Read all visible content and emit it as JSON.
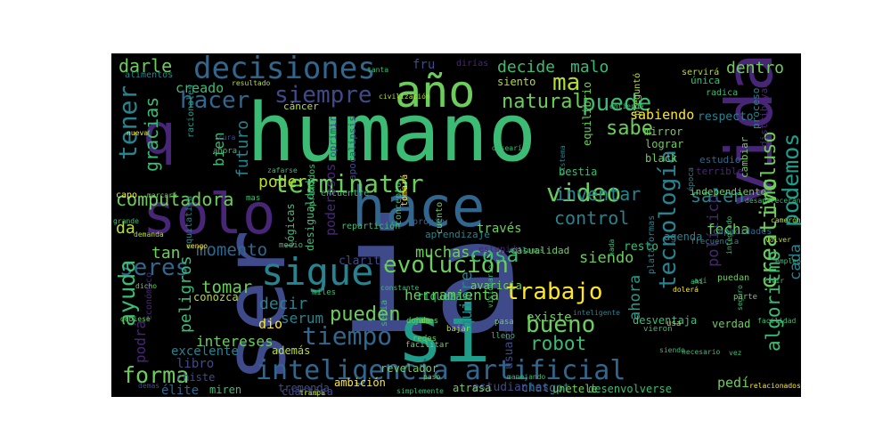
{
  "palette": {
    "background": "#000000",
    "colors": [
      "#440154",
      "#482677",
      "#3f4a8a",
      "#31678e",
      "#26838f",
      "#1f9d8a",
      "#3cbb75",
      "#6cce5a",
      "#b6de2b",
      "#fde725"
    ]
  },
  "words": [
    {
      "text": "ia",
      "color": "#3f4a8a"
    },
    {
      "text": "humano",
      "color": "#3cbb75"
    },
    {
      "text": "ser",
      "color": "#3f4a8a"
    },
    {
      "text": "solo",
      "color": "#482677"
    },
    {
      "text": "hace",
      "color": "#31678e"
    },
    {
      "text": "si",
      "color": "#1f9d8a"
    },
    {
      "text": "vida",
      "color": "#482677"
    },
    {
      "text": "q",
      "color": "#482677"
    },
    {
      "text": "sigue",
      "color": "#26838f"
    },
    {
      "text": "año",
      "color": "#6cce5a"
    },
    {
      "text": "inteligencia artificial",
      "color": "#31678e"
    },
    {
      "text": "decisiones",
      "color": "#31678e"
    },
    {
      "text": "terminator",
      "color": "#6cce5a"
    },
    {
      "text": "evolución",
      "color": "#6cce5a"
    },
    {
      "text": "video",
      "color": "#6cce5a"
    },
    {
      "text": "tiempo",
      "color": "#31678e"
    },
    {
      "text": "seres",
      "color": "#31678e"
    },
    {
      "text": "creativo",
      "color": "#6cce5a"
    },
    {
      "text": "tecnología",
      "color": "#26838f"
    },
    {
      "text": "podemos",
      "color": "#1f9d8a"
    },
    {
      "text": "trabajo",
      "color": "#fde725"
    },
    {
      "text": "ma",
      "color": "#b6de2b"
    },
    {
      "text": "puede",
      "color": "#3cbb75"
    },
    {
      "text": "hacer",
      "color": "#31678e"
    },
    {
      "text": "siempre",
      "color": "#3f4a8a"
    },
    {
      "text": "tener",
      "color": "#26838f"
    },
    {
      "text": "forma",
      "color": "#6cce5a"
    },
    {
      "text": "ayuda",
      "color": "#3cbb75"
    },
    {
      "text": "bueno",
      "color": "#6cce5a"
    },
    {
      "text": "pueden",
      "color": "#6cce5a"
    },
    {
      "text": "algoritmo",
      "color": "#3cbb75"
    },
    {
      "text": "cosa",
      "color": "#3cbb75"
    },
    {
      "text": "robot",
      "color": "#3cbb75"
    },
    {
      "text": "incluso",
      "color": "#6cce5a"
    },
    {
      "text": "sabe",
      "color": "#6cce5a"
    },
    {
      "text": "natural",
      "color": "#6cce5a"
    },
    {
      "text": "computadora",
      "color": "#6cce5a"
    },
    {
      "text": "gracias",
      "color": "#3cbb75"
    },
    {
      "text": "darle",
      "color": "#6cce5a"
    },
    {
      "text": "decide",
      "color": "#3cbb75"
    },
    {
      "text": "malo",
      "color": "#3cbb75"
    },
    {
      "text": "dentro",
      "color": "#6cce5a"
    },
    {
      "text": "control",
      "color": "#26838f"
    },
    {
      "text": "inventar",
      "color": "#26838f"
    },
    {
      "text": "salen",
      "color": "#26838f"
    },
    {
      "text": "momento",
      "color": "#31678e"
    },
    {
      "text": "poder",
      "color": "#b6de2b"
    },
    {
      "text": "tomar",
      "color": "#6cce5a"
    },
    {
      "text": "tan",
      "color": "#6cce5a"
    },
    {
      "text": "da",
      "color": "#b6de2b"
    },
    {
      "text": "decir",
      "color": "#26838f"
    },
    {
      "text": "muchas",
      "color": "#6cce5a"
    },
    {
      "text": "siendo",
      "color": "#6cce5a"
    },
    {
      "text": "quiere",
      "color": "#26838f"
    },
    {
      "text": "ahora",
      "color": "#1f9d8a"
    },
    {
      "text": "serum",
      "color": "#26838f"
    },
    {
      "text": "intereses",
      "color": "#6cce5a"
    },
    {
      "text": "peligros",
      "color": "#3cbb75"
    },
    {
      "text": "herramienta",
      "color": "#6cce5a"
    },
    {
      "text": "podrá",
      "color": "#482677"
    },
    {
      "text": "político",
      "color": "#482677"
    },
    {
      "text": "cada",
      "color": "#26838f"
    },
    {
      "text": "fecha",
      "color": "#6cce5a"
    },
    {
      "text": "creado",
      "color": "#3cbb75"
    },
    {
      "text": "bien",
      "color": "#3cbb75"
    },
    {
      "text": "futuro",
      "color": "#26838f"
    },
    {
      "text": "sabiendo",
      "color": "#fde725"
    },
    {
      "text": "respecto",
      "color": "#26838f"
    },
    {
      "text": "existe",
      "color": "#6cce5a"
    },
    {
      "text": "través",
      "color": "#6cce5a"
    },
    {
      "text": "poderosos",
      "color": "#482677"
    },
    {
      "text": "clarito",
      "color": "#3f4a8a"
    },
    {
      "text": "dio",
      "color": "#fde725"
    },
    {
      "text": "libro",
      "color": "#3f4a8a"
    },
    {
      "text": "además",
      "color": "#b6de2b"
    },
    {
      "text": "élite",
      "color": "#31678e"
    },
    {
      "text": "excelente",
      "color": "#26838f"
    },
    {
      "text": "chatgpt",
      "color": "#26838f"
    },
    {
      "text": "usuario",
      "color": "#3f4a8a"
    },
    {
      "text": "resto",
      "color": "#3cbb75"
    },
    {
      "text": "pedí",
      "color": "#6cce5a"
    },
    {
      "text": "aún",
      "color": "#3f4a8a"
    },
    {
      "text": "lograr",
      "color": "#6cce5a"
    },
    {
      "text": "black",
      "color": "#6cce5a"
    },
    {
      "text": "mirror",
      "color": "#6cce5a"
    },
    {
      "text": "estudiantes",
      "color": "#3f4a8a"
    },
    {
      "text": "desenvolverse",
      "color": "#3cbb75"
    },
    {
      "text": "unetele",
      "color": "#6cce5a"
    },
    {
      "text": "tremenda",
      "color": "#3f4a8a"
    },
    {
      "text": "cuántica",
      "color": "#3f4a8a"
    },
    {
      "text": "atrasa",
      "color": "#6cce5a"
    },
    {
      "text": "revelador",
      "color": "#6cce5a"
    },
    {
      "text": "miren",
      "color": "#3cbb75"
    },
    {
      "text": "chiste",
      "color": "#3f4a8a"
    },
    {
      "text": "ambición",
      "color": "#fde725"
    },
    {
      "text": "desventaja",
      "color": "#3cbb75"
    },
    {
      "text": "verdad",
      "color": "#6cce5a"
    },
    {
      "text": "riquezas",
      "color": "#3cbb75"
    },
    {
      "text": "avaricia",
      "color": "#6cce5a"
    },
    {
      "text": "conozca",
      "color": "#b6de2b"
    },
    {
      "text": "fru",
      "color": "#3f4a8a"
    },
    {
      "text": "siento",
      "color": "#b6de2b"
    },
    {
      "text": "bestia",
      "color": "#3cbb75"
    },
    {
      "text": "oprimir",
      "color": "#3f4a8a"
    },
    {
      "text": "apocalipsis",
      "color": "#3f4a8a"
    },
    {
      "text": "oprimidos",
      "color": "#3cbb75"
    },
    {
      "text": "lógicas",
      "color": "#3cbb75"
    },
    {
      "text": "desigualdad",
      "color": "#3cbb75"
    },
    {
      "text": "aprendizaje",
      "color": "#26838f"
    },
    {
      "text": "equilibrio",
      "color": "#6cce5a"
    },
    {
      "text": "agenda",
      "color": "#26838f"
    },
    {
      "text": "estudio",
      "color": "#31678e"
    },
    {
      "text": "cambiar",
      "color": "#6cce5a"
    },
    {
      "text": "capacidades",
      "color": "#31678e"
    },
    {
      "text": "independiente",
      "color": "#6cce5a"
    },
    {
      "text": "distribuyan",
      "color": "#482677"
    },
    {
      "text": "proceso",
      "color": "#26838f"
    },
    {
      "text": "terrible",
      "color": "#482677"
    },
    {
      "text": "preguntó",
      "color": "#b6de2b"
    },
    {
      "text": "única",
      "color": "#3cbb75"
    },
    {
      "text": "servirá",
      "color": "#b6de2b"
    },
    {
      "text": "radica",
      "color": "#3cbb75"
    },
    {
      "text": "dirías",
      "color": "#482677"
    },
    {
      "text": "cáncer",
      "color": "#b6de2b"
    },
    {
      "text": "encuentre",
      "color": "#3cbb75"
    },
    {
      "text": "repartición",
      "color": "#3cbb75"
    },
    {
      "text": "concepto",
      "color": "#3cbb75"
    },
    {
      "text": "cuento",
      "color": "#6cce5a"
    },
    {
      "text": "propio",
      "color": "#31678e"
    },
    {
      "text": "tomará",
      "color": "#fde725"
    },
    {
      "text": "capo",
      "color": "#fde725"
    },
    {
      "text": "puedan",
      "color": "#6cce5a"
    },
    {
      "text": "plataformas",
      "color": "#26838f"
    },
    {
      "text": "casualidad",
      "color": "#6cce5a"
    },
    {
      "text": "estupidez",
      "color": "#482677"
    },
    {
      "text": "alimentos",
      "color": "#26838f"
    },
    {
      "text": "racionales",
      "color": "#1f9d8a"
    },
    {
      "text": "equitativa",
      "color": "#26838f"
    },
    {
      "text": "económico",
      "color": "#482677"
    },
    {
      "text": "frecuencia",
      "color": "#26838f"
    },
    {
      "text": "época",
      "color": "#26838f"
    },
    {
      "text": "parte",
      "color": "#6cce5a"
    },
    {
      "text": "facilitar",
      "color": "#6cce5a"
    },
    {
      "text": "usa",
      "color": "#b6de2b"
    },
    {
      "text": "pasa",
      "color": "#6cce5a"
    },
    {
      "text": "donde",
      "color": "#6cce5a"
    },
    {
      "text": "james",
      "color": "#6cce5a"
    },
    {
      "text": "bajar",
      "color": "#b6de2b"
    },
    {
      "text": "redes",
      "color": "#6cce5a"
    },
    {
      "text": "vieron",
      "color": "#3cbb75"
    },
    {
      "text": "dicho",
      "color": "#6cce5a"
    },
    {
      "text": "demanda",
      "color": "#b6de2b"
    },
    {
      "text": "relacionados",
      "color": "#fde725"
    },
    {
      "text": "grande",
      "color": "#3cbb75"
    },
    {
      "text": "vengo",
      "color": "#fde725"
    },
    {
      "text": "marcará",
      "color": "#6cce5a"
    },
    {
      "text": "seria",
      "color": "#3cbb75"
    },
    {
      "text": "lleno",
      "color": "#3cbb75"
    },
    {
      "text": "constante",
      "color": "#3cbb75"
    },
    {
      "text": "demas",
      "color": "#3f4a8a"
    },
    {
      "text": "nueva",
      "color": "#fde725"
    },
    {
      "text": "civilización",
      "color": "#b6de2b"
    },
    {
      "text": "resultado",
      "color": "#b6de2b"
    },
    {
      "text": "tanta",
      "color": "#3cbb75"
    },
    {
      "text": "desearía",
      "color": "#3cbb75"
    },
    {
      "text": "millones",
      "color": "#3cbb75"
    },
    {
      "text": "entiende",
      "color": "#3cbb75"
    },
    {
      "text": "camerón",
      "color": "#b6de2b"
    },
    {
      "text": "debiese",
      "color": "#6cce5a"
    },
    {
      "text": "dolerá",
      "color": "#fde725"
    },
    {
      "text": "ahí",
      "color": "#3cbb75"
    },
    {
      "text": "así",
      "color": "#3cbb75"
    },
    {
      "text": "simplemente",
      "color": "#3cbb75"
    },
    {
      "text": "trampa",
      "color": "#b6de2b"
    },
    {
      "text": "paso",
      "color": "#6cce5a"
    },
    {
      "text": "empleo",
      "color": "#3cbb75"
    },
    {
      "text": "zafarse",
      "color": "#3cbb75"
    },
    {
      "text": "manejando",
      "color": "#3cbb75"
    },
    {
      "text": "cura",
      "color": "#3f4a8a"
    },
    {
      "text": "nada",
      "color": "#3cbb75"
    },
    {
      "text": "visionario",
      "color": "#3cbb75"
    },
    {
      "text": "sistema",
      "color": "#26838f"
    },
    {
      "text": "desaparecerán",
      "color": "#3cbb75"
    },
    {
      "text": "inteligente",
      "color": "#26838f"
    },
    {
      "text": "facilidad",
      "color": "#3cbb75"
    },
    {
      "text": "integrado",
      "color": "#3cbb75"
    },
    {
      "text": "volver",
      "color": "#b6de2b"
    },
    {
      "text": "vivir",
      "color": "#3cbb75"
    },
    {
      "text": "necesario",
      "color": "#3cbb75"
    },
    {
      "text": "vez",
      "color": "#3cbb75"
    },
    {
      "text": "seguro",
      "color": "#3cbb75"
    },
    {
      "text": "siendo",
      "color": "#3cbb75"
    },
    {
      "text": "ahora",
      "color": "#3cbb75"
    },
    {
      "text": "mas",
      "color": "#3cbb75"
    },
    {
      "text": "medio",
      "color": "#3cbb75"
    },
    {
      "text": "miles",
      "color": "#3cbb75"
    }
  ]
}
